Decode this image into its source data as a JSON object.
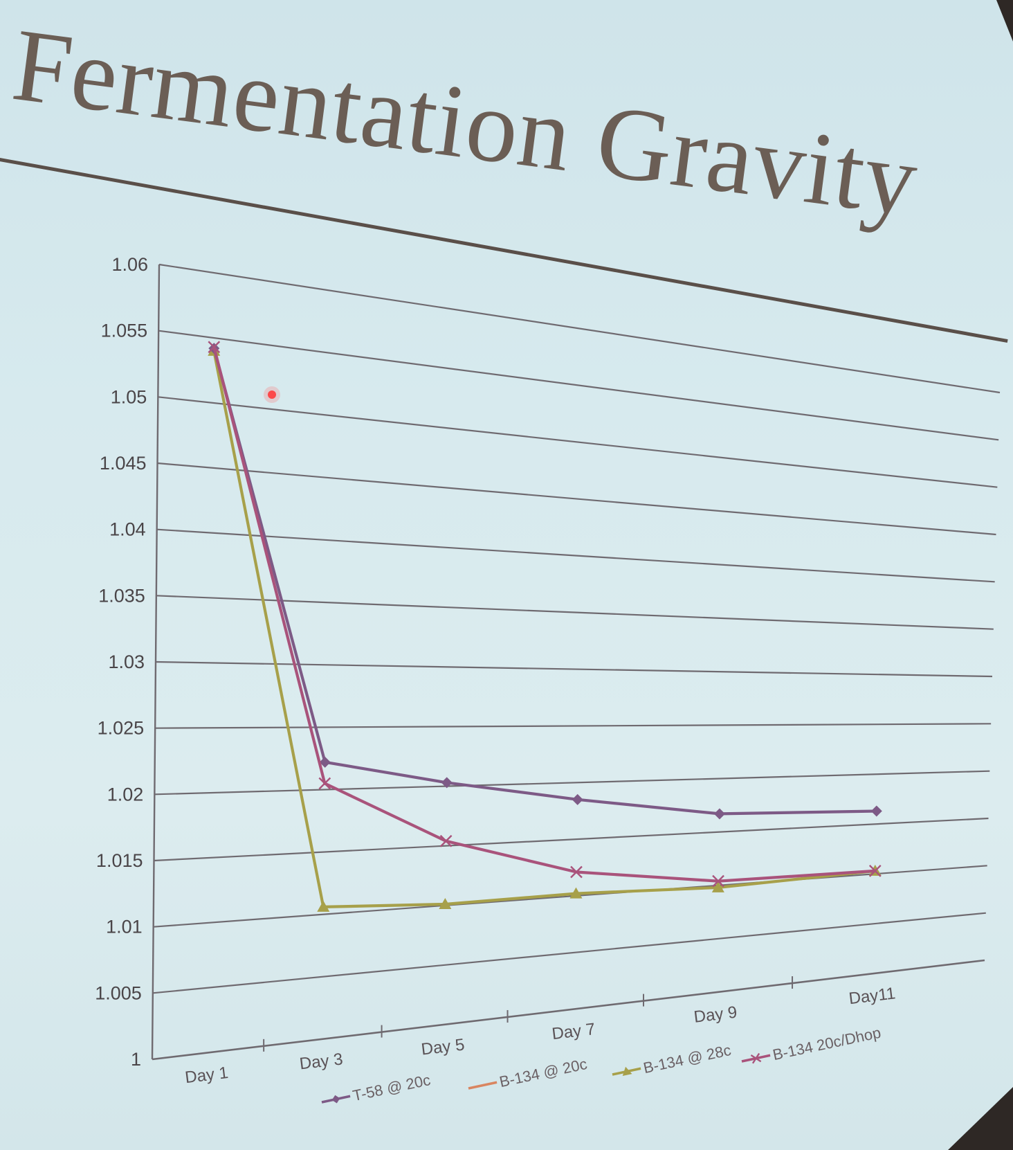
{
  "slide": {
    "title": "Fermentation Gravity"
  },
  "chart_data": {
    "type": "line",
    "title": "",
    "xlabel": "",
    "ylabel": "",
    "categories": [
      "Day 1",
      "Day 3",
      "Day 5",
      "Day 7",
      "Day 9",
      "Day11"
    ],
    "y_ticks": [
      "1",
      "1.005",
      "1.01",
      "1.015",
      "1.02",
      "1.025",
      "1.03",
      "1.035",
      "1.04",
      "1.045",
      "1.05",
      "1.055",
      "1.06"
    ],
    "ylim": [
      1,
      1.06
    ],
    "grid": true,
    "legend_position": "bottom",
    "series": [
      {
        "name": "T-58 @ 20c",
        "color": "#7d5a86",
        "marker": "diamond",
        "values": [
          1.0542,
          1.0222,
          1.0203,
          1.0185,
          1.0167,
          1.0163
        ]
      },
      {
        "name": "B-134 @ 20c",
        "color": "#d98560",
        "marker": "none",
        "values": [
          1.0505,
          null,
          null,
          null,
          null,
          null
        ]
      },
      {
        "name": "B-134 @ 28c",
        "color": "#a7a04a",
        "marker": "triangle",
        "values": [
          1.054,
          1.0106,
          1.0101,
          1.0102,
          1.0098,
          1.0103
        ]
      },
      {
        "name": "B-134 20c/Dhop",
        "color": "#a9537b",
        "marker": "x",
        "values": [
          1.0543,
          1.0205,
          1.0154,
          1.0121,
          1.0104,
          1.0103
        ]
      }
    ]
  }
}
